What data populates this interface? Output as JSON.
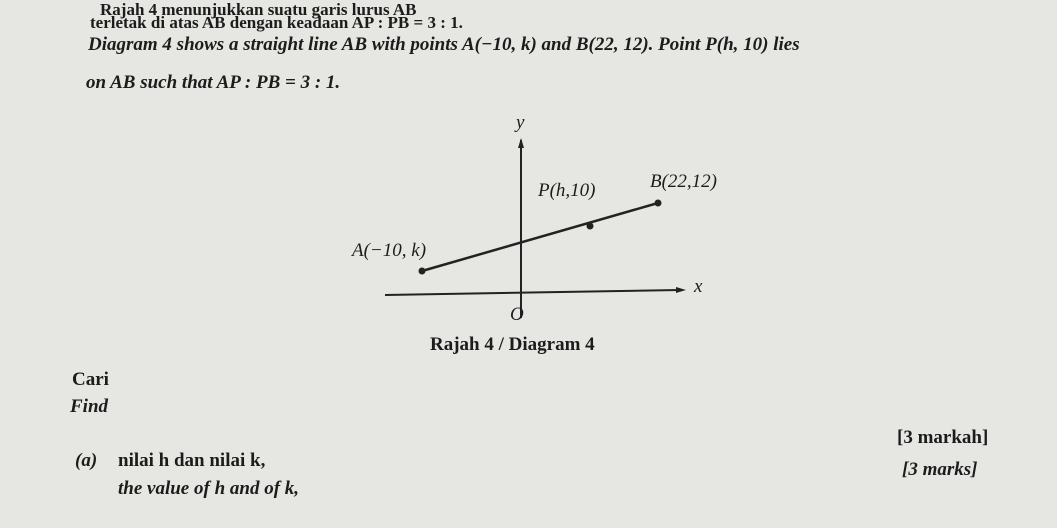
{
  "intro": {
    "line_ms_1": "Rajah 4 menunjukkan suatu garis lurus AB",
    "line_ms_2": "terletak di atas AB dengan keadaan AP : PB = 3 : 1.",
    "line_en_1": "Diagram 4 shows a straight line AB with points A(−10, k) and B(22, 12). Point P(h, 10) lies",
    "line_en_2": "on AB such that AP : PB = 3 : 1."
  },
  "diagram": {
    "y_label": "y",
    "x_label": "x",
    "origin": "O",
    "point_p": "P(h,10)",
    "point_b": "B(22,12)",
    "point_a": "A(−10, k)",
    "caption": "Rajah 4 / Diagram 4"
  },
  "instruction": {
    "ms": "Cari",
    "en": "Find"
  },
  "question_a": {
    "number": "(a)",
    "ms": "nilai h dan nilai k,",
    "en": "the value of h and of k,",
    "marks_ms": "[3 markah]",
    "marks_en": "[3 marks]"
  }
}
